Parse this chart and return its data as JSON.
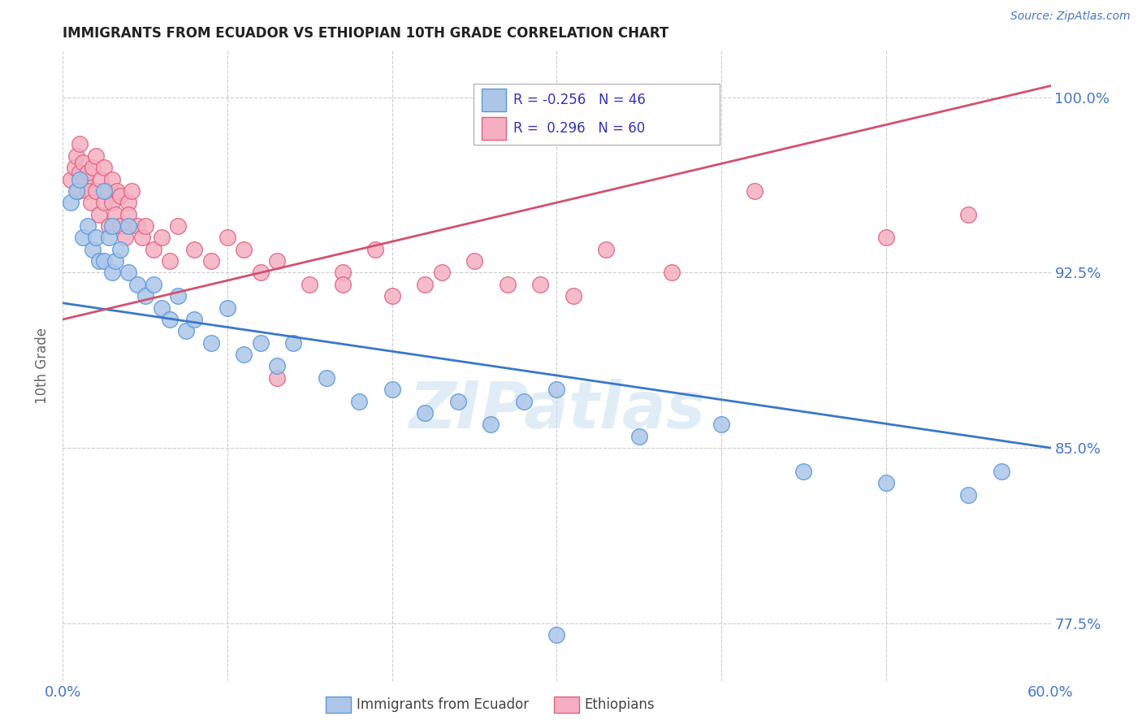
{
  "title": "IMMIGRANTS FROM ECUADOR VS ETHIOPIAN 10TH GRADE CORRELATION CHART",
  "source": "Source: ZipAtlas.com",
  "ylabel": "10th Grade",
  "xlim": [
    0.0,
    0.6
  ],
  "ylim": [
    0.75,
    1.02
  ],
  "ytick_positions": [
    0.775,
    0.8,
    0.825,
    0.85,
    0.875,
    0.9,
    0.925,
    0.95,
    0.975,
    1.0
  ],
  "ytick_labels": [
    "77.5%",
    "",
    "",
    "85.0%",
    "",
    "",
    "92.5%",
    "",
    "",
    "100.0%"
  ],
  "xtick_positions": [
    0.0,
    0.1,
    0.2,
    0.3,
    0.4,
    0.5,
    0.6
  ],
  "xtick_labels": [
    "0.0%",
    "",
    "",
    "",
    "",
    "",
    "60.0%"
  ],
  "ecuador_R": "-0.256",
  "ecuador_N": "46",
  "ethiopian_R": "0.296",
  "ethiopian_N": "60",
  "ecuador_scatter_color": "#adc6e8",
  "ethiopian_scatter_color": "#f5afc0",
  "ecuador_line_color": "#3a78c9",
  "ethiopian_line_color": "#d45070",
  "ecuador_edge_color": "#5599dd",
  "ethiopian_edge_color": "#e06080",
  "watermark": "ZIPatlas",
  "ecuador_line_x0": 0.0,
  "ecuador_line_y0": 0.912,
  "ecuador_line_x1": 0.6,
  "ecuador_line_y1": 0.85,
  "ethiopian_line_x0": 0.0,
  "ethiopian_line_y0": 0.905,
  "ethiopian_line_x1": 0.6,
  "ethiopian_line_y1": 1.005,
  "ecuador_scatter_x": [
    0.005,
    0.008,
    0.01,
    0.012,
    0.015,
    0.018,
    0.02,
    0.022,
    0.025,
    0.025,
    0.028,
    0.03,
    0.03,
    0.032,
    0.035,
    0.04,
    0.04,
    0.045,
    0.05,
    0.055,
    0.06,
    0.065,
    0.07,
    0.075,
    0.08,
    0.09,
    0.1,
    0.11,
    0.12,
    0.13,
    0.14,
    0.16,
    0.18,
    0.2,
    0.22,
    0.24,
    0.26,
    0.28,
    0.3,
    0.35,
    0.4,
    0.45,
    0.5,
    0.55,
    0.57,
    0.3
  ],
  "ecuador_scatter_y": [
    0.955,
    0.96,
    0.965,
    0.94,
    0.945,
    0.935,
    0.94,
    0.93,
    0.93,
    0.96,
    0.94,
    0.945,
    0.925,
    0.93,
    0.935,
    0.925,
    0.945,
    0.92,
    0.915,
    0.92,
    0.91,
    0.905,
    0.915,
    0.9,
    0.905,
    0.895,
    0.91,
    0.89,
    0.895,
    0.885,
    0.895,
    0.88,
    0.87,
    0.875,
    0.865,
    0.87,
    0.86,
    0.87,
    0.875,
    0.855,
    0.86,
    0.84,
    0.835,
    0.83,
    0.84,
    0.77
  ],
  "ethiopian_scatter_x": [
    0.005,
    0.007,
    0.008,
    0.009,
    0.01,
    0.01,
    0.012,
    0.013,
    0.015,
    0.015,
    0.017,
    0.018,
    0.02,
    0.02,
    0.022,
    0.023,
    0.025,
    0.025,
    0.027,
    0.028,
    0.03,
    0.03,
    0.032,
    0.033,
    0.035,
    0.035,
    0.038,
    0.04,
    0.04,
    0.042,
    0.045,
    0.048,
    0.05,
    0.055,
    0.06,
    0.065,
    0.07,
    0.08,
    0.09,
    0.1,
    0.11,
    0.12,
    0.13,
    0.15,
    0.17,
    0.19,
    0.22,
    0.25,
    0.29,
    0.31,
    0.13,
    0.17,
    0.2,
    0.23,
    0.27,
    0.33,
    0.37,
    0.42,
    0.5,
    0.55
  ],
  "ethiopian_scatter_y": [
    0.965,
    0.97,
    0.975,
    0.96,
    0.968,
    0.98,
    0.972,
    0.965,
    0.96,
    0.968,
    0.955,
    0.97,
    0.96,
    0.975,
    0.95,
    0.965,
    0.955,
    0.97,
    0.96,
    0.945,
    0.955,
    0.965,
    0.95,
    0.96,
    0.945,
    0.958,
    0.94,
    0.955,
    0.95,
    0.96,
    0.945,
    0.94,
    0.945,
    0.935,
    0.94,
    0.93,
    0.945,
    0.935,
    0.93,
    0.94,
    0.935,
    0.925,
    0.93,
    0.92,
    0.925,
    0.935,
    0.92,
    0.93,
    0.92,
    0.915,
    0.88,
    0.92,
    0.915,
    0.925,
    0.92,
    0.935,
    0.925,
    0.96,
    0.94,
    0.95
  ]
}
